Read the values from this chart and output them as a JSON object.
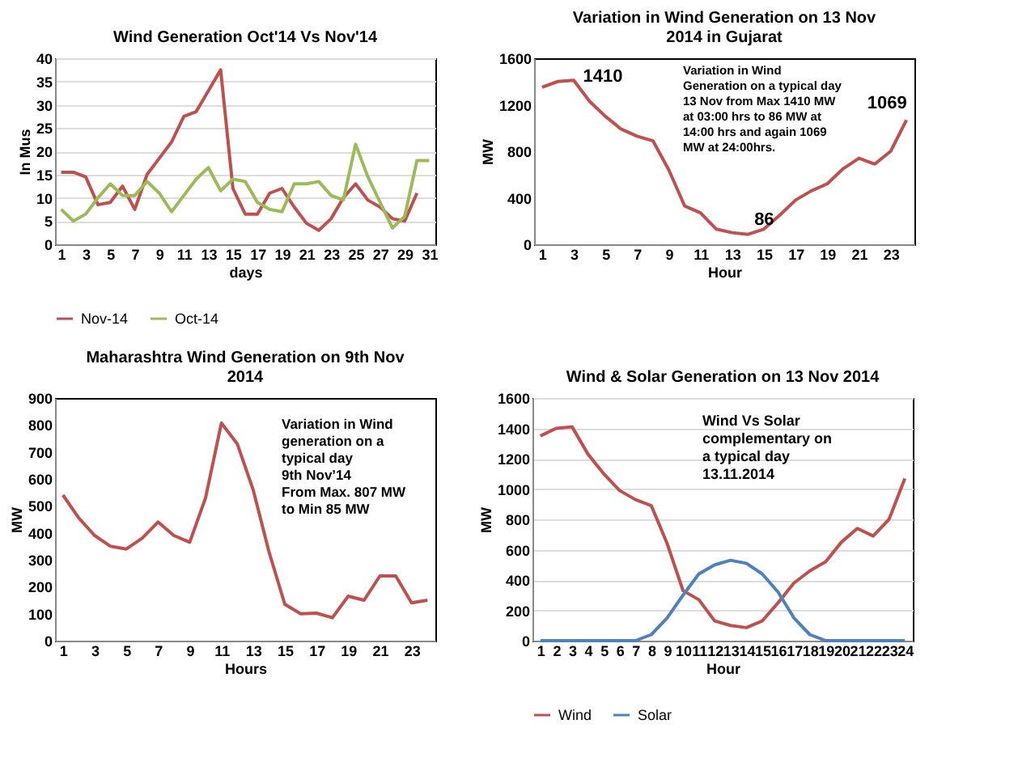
{
  "chart_data": [
    {
      "type": "line",
      "title": "Wind Generation Oct'14 Vs Nov'14",
      "xlabel": "days",
      "ylabel": "In Mus",
      "xlim": [
        0.5,
        31.5
      ],
      "xticks": [
        1,
        3,
        5,
        7,
        9,
        11,
        13,
        15,
        17,
        19,
        21,
        23,
        25,
        27,
        29,
        31
      ],
      "ylim": [
        0,
        40
      ],
      "yticks": [
        0,
        5,
        10,
        15,
        20,
        25,
        30,
        35,
        40
      ],
      "grid": "y",
      "legend": "bottom",
      "series": [
        {
          "name": "Nov-14",
          "color": "#c0504d",
          "x": [
            1,
            2,
            3,
            4,
            5,
            6,
            7,
            8,
            9,
            10,
            11,
            12,
            13,
            14,
            15,
            16,
            17,
            18,
            19,
            20,
            21,
            22,
            23,
            24,
            25,
            26,
            27,
            28,
            29,
            30
          ],
          "values": [
            15.5,
            15.5,
            14.5,
            8.5,
            9,
            12.5,
            7.5,
            15,
            18.5,
            22,
            27.5,
            28.5,
            33,
            37.5,
            12,
            6.5,
            6.5,
            11,
            12,
            8,
            4.5,
            3,
            5.5,
            10,
            13,
            9.5,
            8,
            5.5,
            5,
            11
          ]
        },
        {
          "name": "Oct-14",
          "color": "#9bbb59",
          "x": [
            1,
            2,
            3,
            4,
            5,
            6,
            7,
            8,
            9,
            10,
            11,
            12,
            13,
            14,
            15,
            16,
            17,
            18,
            19,
            20,
            21,
            22,
            23,
            24,
            25,
            26,
            27,
            28,
            29,
            30,
            31
          ],
          "values": [
            7.5,
            5,
            6.5,
            10,
            13,
            10.5,
            10.5,
            13.5,
            11,
            7,
            10.5,
            14,
            16.5,
            11.5,
            14,
            13.5,
            9,
            7.5,
            7,
            13,
            13,
            13.5,
            10.5,
            9.5,
            21.5,
            14.5,
            9,
            3.5,
            6,
            18,
            18
          ]
        }
      ]
    },
    {
      "type": "line",
      "title": "Variation in Wind Generation on 13 Nov 2014 in Gujarat",
      "xlabel": "Hour",
      "ylabel": "MW",
      "xlim": [
        0.5,
        24.5
      ],
      "xticks": [
        1,
        3,
        5,
        7,
        9,
        11,
        13,
        15,
        17,
        19,
        21,
        23
      ],
      "ylim": [
        0,
        1600
      ],
      "yticks": [
        0,
        400,
        800,
        1200,
        1600
      ],
      "x": [
        1,
        2,
        3,
        4,
        5,
        6,
        7,
        8,
        9,
        10,
        11,
        12,
        13,
        14,
        15,
        16,
        17,
        18,
        19,
        20,
        21,
        22,
        23,
        24
      ],
      "series": [
        {
          "color": "#c0504d",
          "values": [
            1350,
            1400,
            1410,
            1230,
            1100,
            990,
            930,
            890,
            640,
            330,
            270,
            130,
            100,
            86,
            130,
            250,
            380,
            460,
            520,
            650,
            740,
            690,
            800,
            1069
          ]
        }
      ],
      "annotations": [
        {
          "text": "1410",
          "x": 3,
          "y": 1410
        },
        {
          "text": "86",
          "x": 14,
          "y": 86
        },
        {
          "text": "1069",
          "x": 24,
          "y": 1069
        },
        "Variation in Wind\nGeneration on a typical day\n13 Nov from Max 1410 MW\nat 03:00 hrs to 86 MW at\n14:00 hrs and again 1069\nMW at 24:00hrs."
      ]
    },
    {
      "type": "line",
      "title": "Maharashtra Wind Generation on 9th Nov 2014",
      "xlabel": "Hours",
      "ylabel": "MW",
      "xlim": [
        0.5,
        24.5
      ],
      "xticks": [
        1,
        3,
        5,
        7,
        9,
        11,
        13,
        15,
        17,
        19,
        21,
        23
      ],
      "ylim": [
        0,
        900
      ],
      "yticks": [
        0,
        100,
        200,
        300,
        400,
        500,
        600,
        700,
        800,
        900
      ],
      "x": [
        1,
        2,
        3,
        4,
        5,
        6,
        7,
        8,
        9,
        10,
        11,
        12,
        13,
        14,
        15,
        16,
        17,
        18,
        19,
        20,
        21,
        22,
        23,
        24
      ],
      "series": [
        {
          "color": "#c0504d",
          "values": [
            540,
            455,
            390,
            350,
            340,
            380,
            440,
            390,
            365,
            530,
            807,
            730,
            560,
            330,
            135,
            100,
            102,
            85,
            165,
            150,
            240,
            240,
            140,
            150
          ]
        }
      ],
      "annotations": [
        "Variation in Wind\n generation on a\ntypical day\n9th Nov’14\nFrom Max. 807 MW\nto Min 85 MW"
      ]
    },
    {
      "type": "line",
      "title": "Wind & Solar Generation on 13 Nov 2014",
      "xlabel": "Hour",
      "ylabel": "MW",
      "xlim": [
        0.5,
        24.5
      ],
      "xticks": [
        1,
        2,
        3,
        4,
        5,
        6,
        7,
        8,
        9,
        10,
        11,
        12,
        13,
        14,
        15,
        16,
        17,
        18,
        19,
        20,
        21,
        22,
        23,
        24
      ],
      "ylim": [
        0,
        1600
      ],
      "yticks": [
        0,
        200,
        400,
        600,
        800,
        1000,
        1200,
        1400,
        1600
      ],
      "grid": "y",
      "legend": "bottom",
      "x": [
        1,
        2,
        3,
        4,
        5,
        6,
        7,
        8,
        9,
        10,
        11,
        12,
        13,
        14,
        15,
        16,
        17,
        18,
        19,
        20,
        21,
        22,
        23,
        24
      ],
      "series": [
        {
          "name": "Wind",
          "color": "#c0504d",
          "values": [
            1350,
            1400,
            1410,
            1230,
            1100,
            990,
            930,
            890,
            640,
            330,
            270,
            130,
            100,
            86,
            130,
            250,
            380,
            460,
            520,
            650,
            740,
            690,
            800,
            1069
          ]
        },
        {
          "name": "Solar",
          "color": "#4f81bd",
          "values": [
            0,
            0,
            0,
            0,
            0,
            0,
            0,
            40,
            150,
            300,
            440,
            500,
            530,
            510,
            440,
            320,
            150,
            40,
            0,
            0,
            0,
            0,
            0,
            0
          ]
        }
      ],
      "annotations": [
        "Wind Vs Solar\ncomplementary on\na typical day\n13.11.2014"
      ]
    }
  ]
}
